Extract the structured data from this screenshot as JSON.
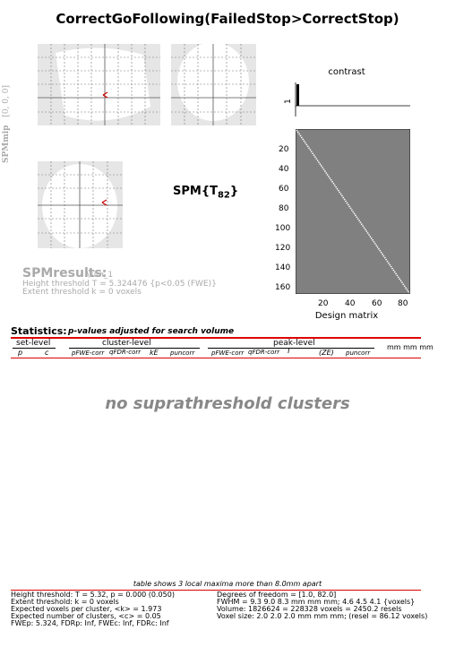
{
  "window": {
    "title": "CorrectGoFollowing(FailedStop>CorrectStop)"
  },
  "mip": {
    "label": "SPMmip",
    "coords": "[0, 0, 0]",
    "stat_label": "SPM{T",
    "stat_sub": "82",
    "stat_close": "}",
    "cursor_color": "#cc0000"
  },
  "results": {
    "title": "SPMresults:",
    "subtitle": ".\\sim_1",
    "height_threshold": "Height threshold T = 5.324476  {p<0.05 (FWE)}",
    "extent_threshold": "Extent threshold k = 0 voxels"
  },
  "design": {
    "contrast_label": "contrast",
    "contrast_tick": "1",
    "xlabel": "Design matrix",
    "y_ticks": [
      "20",
      "40",
      "60",
      "80",
      "100",
      "120",
      "140",
      "160"
    ],
    "x_ticks": [
      "20",
      "40",
      "60",
      "80"
    ],
    "matrix_color": "#808080"
  },
  "stats": {
    "title": "Statistics:",
    "subtitle": "p-values adjusted for search volume",
    "set_level": "set-level",
    "cluster_level": "cluster-level",
    "peak_level": "peak-level",
    "mm_header": "mm mm mm",
    "col_p": "p",
    "col_c": "c",
    "col_pfwe_cluster": "pFWE-corr",
    "col_qfdr_cluster": "qFDR-corr",
    "col_ke": "kE",
    "col_punc_cluster": "puncorr",
    "col_pfwe_peak": "pFWE-corr",
    "col_qfdr_peak": "qFDR-corr",
    "col_t": "T",
    "col_ze": "(ZE)",
    "col_punc_peak": "puncorr",
    "no_clusters": "no suprathreshold clusters"
  },
  "footer": {
    "note": "table shows 3 local maxima more than 8.0mm apart",
    "left": [
      "Height threshold: T = 5.32, p = 0.000 (0.050)",
      "Extent threshold: k = 0 voxels",
      "Expected voxels per cluster, <k> = 1.973",
      "Expected number of clusters, <c> = 0.05",
      "FWEp: 5.324, FDRp: Inf, FWEc: Inf, FDRc: Inf"
    ],
    "right": [
      "Degrees of freedom = [1.0, 82.0]",
      "FWHM = 9.3 9.0 8.3 mm mm mm; 4.6 4.5 4.1 {voxels}",
      "Volume: 1826624 = 228328 voxels = 2450.2 resels",
      "Voxel size: 2.0 2.0 2.0 mm mm mm; (resel = 86.12 voxels)"
    ]
  }
}
